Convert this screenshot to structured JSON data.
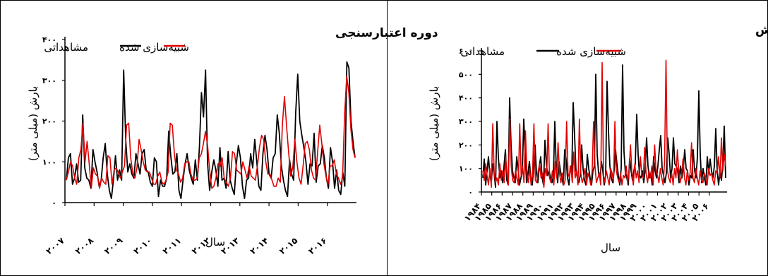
{
  "chart_data": [
    {
      "type": "line",
      "title": "دوره اعتبارسنجی",
      "xlabel": "سال",
      "ylabel": "بارش (میلی متر)",
      "ylim": [
        0,
        400
      ],
      "yticks": [
        "۰",
        "۱۰۰",
        "۲۰۰",
        "۳۰۰",
        "۴۰۰"
      ],
      "xtick_labels": [
        "۲۰۰۷",
        "۲۰۰۸",
        "۲۰۰۹",
        "۲۰۱۰",
        "۲۰۱۱",
        "۲۰۱۲",
        "۲۰۱۳",
        "۲۰۱۴",
        "۲۰۱۵",
        "۲۰۱۶"
      ],
      "x_start_year": 2007,
      "legend": "top",
      "series": [
        {
          "name": "مشاهداتی",
          "color": "#000000",
          "values": [
            55,
            110,
            120,
            45,
            60,
            95,
            50,
            55,
            215,
            85,
            60,
            55,
            35,
            130,
            100,
            75,
            40,
            55,
            110,
            145,
            70,
            30,
            10,
            55,
            115,
            55,
            80,
            55,
            325,
            155,
            75,
            95,
            70,
            60,
            120,
            95,
            70,
            120,
            130,
            80,
            75,
            50,
            40,
            110,
            100,
            15,
            55,
            40,
            40,
            60,
            175,
            115,
            70,
            75,
            120,
            30,
            10,
            55,
            95,
            120,
            80,
            60,
            45,
            105,
            55,
            135,
            270,
            210,
            325,
            95,
            30,
            75,
            105,
            80,
            40,
            135,
            55,
            60,
            35,
            125,
            55,
            35,
            20,
            95,
            140,
            110,
            40,
            10,
            55,
            60,
            120,
            85,
            155,
            100,
            40,
            30,
            120,
            165,
            130,
            70,
            60,
            110,
            120,
            215,
            170,
            90,
            55,
            30,
            15,
            105,
            70,
            55,
            220,
            315,
            200,
            165,
            135,
            100,
            45,
            95,
            90,
            170,
            50,
            90,
            95,
            140,
            110,
            60,
            35,
            135,
            100,
            35,
            80,
            30,
            20,
            75,
            40,
            345,
            330,
            200,
            150,
            110
          ]
        },
        {
          "name": "شبیه‌سازی شده",
          "color": "#e00000",
          "values": [
            55,
            75,
            100,
            90,
            60,
            45,
            110,
            130,
            195,
            100,
            150,
            95,
            35,
            85,
            70,
            65,
            35,
            60,
            50,
            45,
            115,
            110,
            45,
            80,
            85,
            75,
            60,
            75,
            90,
            190,
            195,
            110,
            70,
            60,
            85,
            155,
            130,
            100,
            80,
            75,
            75,
            60,
            45,
            45,
            65,
            75,
            50,
            45,
            55,
            75,
            195,
            190,
            120,
            80,
            70,
            50,
            60,
            95,
            100,
            100,
            70,
            55,
            55,
            60,
            110,
            120,
            145,
            175,
            140,
            80,
            35,
            40,
            60,
            95,
            90,
            110,
            60,
            50,
            40,
            60,
            125,
            120,
            80,
            75,
            70,
            100,
            80,
            60,
            90,
            65,
            60,
            55,
            90,
            135,
            165,
            155,
            100,
            70,
            70,
            55,
            40,
            40,
            60,
            50,
            190,
            260,
            190,
            125,
            65,
            85,
            155,
            100,
            60,
            45,
            90,
            145,
            150,
            130,
            80,
            60,
            55,
            125,
            190,
            145,
            95,
            65,
            45,
            90,
            90,
            105,
            70,
            60,
            45,
            60,
            220,
            310,
            270,
            180,
            130,
            110
          ]
        }
      ]
    },
    {
      "type": "line",
      "title": "دوره آموزش",
      "xlabel": "سال",
      "ylabel": "بارش (میلی متر)",
      "ylim": [
        0,
        600
      ],
      "yticks": [
        "۰",
        "۱۰۰",
        "۲۰۰",
        "۳۰۰",
        "۴۰۰",
        "۵۰۰",
        "۶۰۰"
      ],
      "xtick_labels": [
        "۱۹۸۴",
        "۱۹۸۵",
        "۱۹۸۶",
        "۱۹۸۷",
        "۱۹۸۸",
        "۱۹۸۹",
        "۱۹۹۰",
        "۱۹۹۱",
        "۱۹۹۲",
        "۱۹۹۳",
        "۱۹۹۴",
        "۱۹۹۵",
        "۱۹۹۶",
        "۱۹۹۷",
        "۱۹۹۸",
        "۱۹۹۹",
        "۲۰۰۰",
        "۲۰۰۱",
        "۲۰۰۲",
        "۲۰۰۳",
        "۲۰۰۴",
        "۲۰۰۵",
        "۲۰۰۶"
      ],
      "x_start_year": 1984,
      "legend": "top",
      "series": [
        {
          "name": "مشاهداتی",
          "color": "#000000",
          "values": [
            60,
            140,
            30,
            90,
            150,
            70,
            40,
            120,
            80,
            20,
            300,
            150,
            60,
            90,
            40,
            110,
            180,
            50,
            30,
            400,
            200,
            90,
            60,
            40,
            150,
            100,
            30,
            60,
            90,
            310,
            160,
            40,
            80,
            130,
            60,
            30,
            100,
            200,
            80,
            40,
            110,
            150,
            60,
            30,
            220,
            120,
            70,
            90,
            60,
            40,
            70,
            300,
            100,
            40,
            130,
            90,
            60,
            30,
            180,
            140,
            60,
            30,
            110,
            80,
            380,
            240,
            90,
            60,
            40,
            70,
            200,
            100,
            50,
            30,
            160,
            100,
            60,
            30,
            90,
            110,
            500,
            160,
            80,
            60,
            130,
            90,
            30,
            70,
            470,
            260,
            110,
            60,
            40,
            90,
            180,
            120,
            70,
            30,
            100,
            540,
            170,
            80,
            60,
            30,
            140,
            90,
            50,
            90,
            120,
            330,
            160,
            70,
            60,
            90,
            40,
            100,
            230,
            110,
            60,
            80,
            30,
            150,
            90,
            60,
            110,
            180,
            240,
            100,
            70,
            40,
            80,
            230,
            160,
            60,
            100,
            230,
            120,
            110,
            90,
            40,
            110,
            60,
            100,
            180,
            100,
            90,
            30,
            70,
            60,
            180,
            90,
            60,
            150,
            430,
            160,
            40,
            100,
            60,
            30,
            150,
            80,
            140,
            90,
            60,
            110,
            270,
            90,
            30,
            90,
            50,
            120,
            280,
            60
          ]
        },
        {
          "name": "شبیه‌سازی شده",
          "color": "#e00000",
          "values": [
            90,
            50,
            120,
            70,
            30,
            100,
            20,
            290,
            80,
            40,
            60,
            30,
            120,
            50,
            90,
            40,
            150,
            80,
            30,
            310,
            110,
            50,
            40,
            90,
            60,
            30,
            290,
            70,
            110,
            40,
            260,
            80,
            40,
            100,
            30,
            70,
            290,
            50,
            40,
            90,
            120,
            60,
            80,
            20,
            100,
            70,
            290,
            60,
            40,
            90,
            30,
            130,
            60,
            210,
            80,
            40,
            80,
            30,
            50,
            300,
            80,
            60,
            110,
            40,
            170,
            60,
            90,
            30,
            310,
            80,
            40,
            60,
            100,
            30,
            80,
            60,
            30,
            90,
            300,
            110,
            40,
            60,
            80,
            30,
            550,
            70,
            40,
            90,
            60,
            30,
            100,
            80,
            40,
            300,
            90,
            60,
            40,
            80,
            30,
            70,
            60,
            110,
            40,
            90,
            200,
            80,
            30,
            120,
            60,
            90,
            40,
            150,
            70,
            60,
            190,
            80,
            40,
            90,
            60,
            110,
            30,
            200,
            90,
            70,
            40,
            100,
            60,
            30,
            130,
            560,
            90,
            60,
            40,
            80,
            30,
            100,
            60,
            180,
            90,
            40,
            70,
            140,
            60,
            30,
            90,
            50,
            80,
            210,
            60,
            40,
            100,
            60,
            30,
            90,
            50,
            40,
            80,
            60,
            30,
            100,
            70,
            80,
            50,
            30,
            90,
            80,
            150,
            60,
            230,
            90,
            160,
            110
          ]
        }
      ]
    }
  ]
}
